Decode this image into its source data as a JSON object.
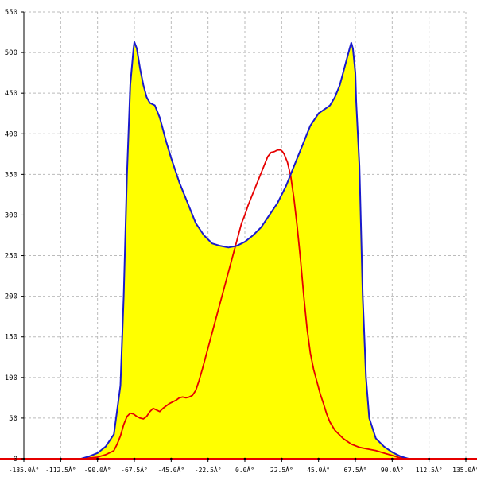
{
  "chart_data": {
    "type": "area",
    "title": "",
    "xlabel": "",
    "ylabel": "",
    "xlim": [
      -135,
      135
    ],
    "ylim": [
      0,
      550
    ],
    "grid": true,
    "x_ticks": [
      -135,
      -112.5,
      -90,
      -67.5,
      -45,
      -22.5,
      0,
      22.5,
      45,
      67.5,
      90,
      112.5,
      135
    ],
    "x_tick_labels": [
      "-135.0Â°",
      "-112.5Â°",
      "-90.0Â°",
      "-67.5Â°",
      "-45.0Â°",
      "-22.5Â°",
      "0.0Â°",
      "22.5Â°",
      "45.0Â°",
      "67.5Â°",
      "90.0Â°",
      "112.5Â°",
      "135.0Â°"
    ],
    "y_ticks": [
      0,
      50,
      100,
      150,
      200,
      250,
      300,
      350,
      400,
      450,
      500,
      550
    ],
    "y_tick_labels": [
      "0",
      "50",
      "100",
      "150",
      "200",
      "250",
      "300",
      "350",
      "400",
      "450",
      "500",
      "550"
    ],
    "colors": {
      "fill": "#ffff00",
      "blue_line": "#1a1acc",
      "red_line": "#e60000",
      "grid": "#bbbbbb",
      "axis": "#000000",
      "baseline": "#e60000"
    },
    "series": [
      {
        "style": "filled-area",
        "color": "#1a1acc",
        "x": [
          -100,
          -95,
          -90,
          -85,
          -80,
          -76,
          -74,
          -72,
          -70,
          -68,
          -67.5,
          -66,
          -64,
          -62,
          -60,
          -58,
          -55,
          -52,
          -50,
          -48,
          -45,
          -40,
          -35,
          -30,
          -25,
          -20,
          -15,
          -10,
          -5,
          0,
          5,
          10,
          15,
          20,
          25,
          30,
          35,
          40,
          45,
          50,
          52,
          55,
          58,
          60,
          62,
          64,
          65,
          66,
          67.5,
          68,
          70,
          72,
          74,
          76,
          80,
          85,
          90,
          95,
          100
        ],
        "y": [
          0,
          3,
          7,
          15,
          30,
          90,
          200,
          350,
          460,
          505,
          513,
          505,
          480,
          460,
          445,
          438,
          435,
          420,
          405,
          390,
          370,
          340,
          315,
          290,
          275,
          265,
          262,
          260,
          262,
          267,
          275,
          285,
          300,
          315,
          335,
          360,
          385,
          410,
          425,
          432,
          435,
          445,
          460,
          475,
          490,
          505,
          512,
          505,
          475,
          440,
          360,
          200,
          100,
          50,
          25,
          15,
          8,
          3,
          0
        ]
      },
      {
        "style": "line",
        "color": "#e60000",
        "x": [
          -100,
          -95,
          -90,
          -85,
          -80,
          -78,
          -76,
          -74,
          -72,
          -70,
          -68,
          -66,
          -64,
          -62,
          -60,
          -58,
          -56,
          -54,
          -52,
          -50,
          -48,
          -46,
          -44,
          -42,
          -40,
          -38,
          -36,
          -34,
          -32,
          -30,
          -28,
          -26,
          -24,
          -22,
          -20,
          -18,
          -16,
          -14,
          -12,
          -10,
          -8,
          -6,
          -4,
          -2,
          0,
          2,
          4,
          6,
          8,
          10,
          12,
          14,
          16,
          18,
          20,
          22,
          23,
          24,
          26,
          28,
          30,
          32,
          34,
          36,
          38,
          40,
          42,
          44,
          46,
          48,
          50,
          52,
          55,
          60,
          65,
          70,
          75,
          80,
          85,
          90,
          95,
          100
        ],
        "y": [
          0,
          1,
          2,
          5,
          10,
          18,
          28,
          42,
          52,
          56,
          55,
          52,
          50,
          49,
          52,
          58,
          62,
          60,
          58,
          62,
          65,
          68,
          70,
          72,
          75,
          76,
          75,
          76,
          78,
          84,
          96,
          110,
          125,
          140,
          155,
          170,
          185,
          200,
          215,
          230,
          245,
          260,
          275,
          290,
          300,
          312,
          322,
          332,
          342,
          352,
          362,
          372,
          377,
          378,
          380,
          380,
          378,
          375,
          365,
          348,
          320,
          285,
          245,
          200,
          160,
          130,
          110,
          95,
          80,
          68,
          55,
          45,
          35,
          25,
          18,
          14,
          12,
          10,
          7,
          4,
          1,
          0
        ]
      }
    ]
  }
}
